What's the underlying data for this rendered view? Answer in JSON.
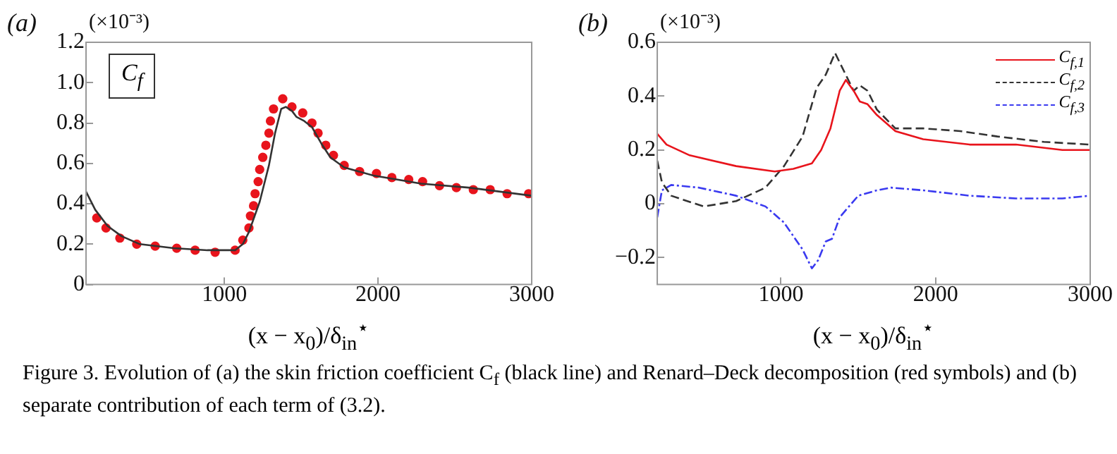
{
  "chart_data": [
    {
      "type": "line",
      "title": "(a)",
      "ylabel": "(×10⁻³)",
      "xlabel": "(x − x$_{0}$)/δ$_{in}$$^{⋆}$",
      "xlim": [
        100,
        3000
      ],
      "xticks": [
        1000,
        2000,
        3000
      ],
      "ylim": [
        0,
        1.2
      ],
      "yticks": [
        0,
        {
          "value": 0.2,
          "label": "0.2"
        },
        {
          "value": 0.4,
          "label": "0.4"
        },
        {
          "value": 0.6,
          "label": "0.6"
        },
        {
          "value": 0.8,
          "label": "0.8"
        },
        {
          "value": 1,
          "label": "1.0"
        },
        {
          "value": 1.2,
          "label": "1.2"
        }
      ],
      "grid": false,
      "legend": false,
      "annotations": [
        "C$_{f}$",
        "Figure  3.  Evolution of (a) the skin friction coefficient C$_{f}$ (black line) and Renard–Deck decomposition (red symbols) and (b) separate contribution of each term of (3.2)."
      ],
      "series": [
        {
          "type": "line",
          "color": "#333333",
          "line_style": "solid",
          "marker": "none",
          "x": [
            100,
            160,
            240,
            330,
            450,
            670,
            890,
            1070,
            1120,
            1160,
            1230,
            1290,
            1330,
            1370,
            1400,
            1440,
            1470,
            1520,
            1570,
            1630,
            1690,
            1780,
            1970,
            2280,
            2590,
            3000
          ],
          "values": [
            0.46,
            0.37,
            0.29,
            0.24,
            0.2,
            0.18,
            0.17,
            0.17,
            0.2,
            0.26,
            0.41,
            0.59,
            0.75,
            0.87,
            0.88,
            0.86,
            0.83,
            0.81,
            0.78,
            0.7,
            0.63,
            0.58,
            0.54,
            0.5,
            0.48,
            0.44
          ]
        },
        {
          "type": "scatter",
          "color": "#e8141c",
          "marker": "circle",
          "x": [
            170,
            230,
            320,
            430,
            550,
            690,
            810,
            940,
            1070,
            1120,
            1160,
            1170,
            1190,
            1200,
            1220,
            1230,
            1250,
            1270,
            1290,
            1300,
            1320,
            1380,
            1440,
            1510,
            1570,
            1610,
            1660,
            1710,
            1780,
            1880,
            1990,
            2090,
            2200,
            2290,
            2400,
            2510,
            2620,
            2730,
            2840,
            2980
          ],
          "values": [
            0.33,
            0.28,
            0.23,
            0.2,
            0.19,
            0.18,
            0.17,
            0.16,
            0.17,
            0.22,
            0.28,
            0.34,
            0.39,
            0.45,
            0.51,
            0.57,
            0.63,
            0.69,
            0.75,
            0.81,
            0.87,
            0.92,
            0.88,
            0.85,
            0.8,
            0.75,
            0.69,
            0.64,
            0.59,
            0.56,
            0.55,
            0.53,
            0.52,
            0.51,
            0.49,
            0.48,
            0.47,
            0.47,
            0.45,
            0.45
          ]
        }
      ]
    },
    {
      "type": "line",
      "title": "(b)",
      "ylabel": "(×10⁻³)",
      "xlabel": "(x − x$_{0}$)/δ$_{in}$$^{⋆}$",
      "xlim": [
        200,
        3000
      ],
      "xticks": [
        1000,
        2000,
        3000
      ],
      "ylim": [
        -0.3,
        0.6
      ],
      "yticks": [
        {
          "value": -0.2,
          "label": "−0.2"
        },
        0,
        {
          "value": 0.2,
          "label": "0.2"
        },
        {
          "value": 0.4,
          "label": "0.4"
        },
        {
          "value": 0.6,
          "label": "0.6"
        }
      ],
      "grid": false,
      "legend": "top right",
      "series": [
        {
          "name": "C$_{f,1}$",
          "type": "line",
          "color": "#e8141c",
          "line_style": "solid",
          "marker": "none",
          "x": [
            200,
            260,
            410,
            710,
            960,
            1080,
            1200,
            1260,
            1320,
            1380,
            1420,
            1470,
            1510,
            1560,
            1620,
            1740,
            1920,
            2220,
            2520,
            2820,
            3000
          ],
          "values": [
            0.26,
            0.22,
            0.18,
            0.14,
            0.12,
            0.13,
            0.15,
            0.2,
            0.28,
            0.42,
            0.46,
            0.42,
            0.38,
            0.37,
            0.33,
            0.27,
            0.24,
            0.22,
            0.22,
            0.2,
            0.2
          ]
        },
        {
          "name": "C$_{f,2}$",
          "type": "line",
          "color": "#333333",
          "line_style": "dashed",
          "marker": "none",
          "x": [
            200,
            230,
            290,
            500,
            710,
            900,
            1020,
            1140,
            1230,
            1290,
            1350,
            1410,
            1470,
            1510,
            1560,
            1620,
            1740,
            1920,
            2160,
            2400,
            2700,
            3000
          ],
          "values": [
            0.16,
            0.08,
            0.03,
            -0.01,
            0.01,
            0.06,
            0.14,
            0.25,
            0.43,
            0.48,
            0.56,
            0.49,
            0.42,
            0.44,
            0.42,
            0.35,
            0.28,
            0.28,
            0.27,
            0.25,
            0.23,
            0.22
          ]
        },
        {
          "name": "C$_{f,3}$",
          "type": "line",
          "color": "#3a3af0",
          "line_style": "dashdot",
          "marker": "none",
          "x": [
            200,
            230,
            290,
            470,
            710,
            900,
            1020,
            1140,
            1200,
            1240,
            1290,
            1330,
            1380,
            1500,
            1620,
            1710,
            1920,
            2220,
            2520,
            2820,
            3000
          ],
          "values": [
            -0.05,
            0.05,
            0.07,
            0.06,
            0.03,
            -0.01,
            -0.07,
            -0.17,
            -0.24,
            -0.21,
            -0.14,
            -0.13,
            -0.05,
            0.03,
            0.05,
            0.06,
            0.05,
            0.03,
            0.02,
            0.02,
            0.03
          ]
        }
      ]
    }
  ]
}
